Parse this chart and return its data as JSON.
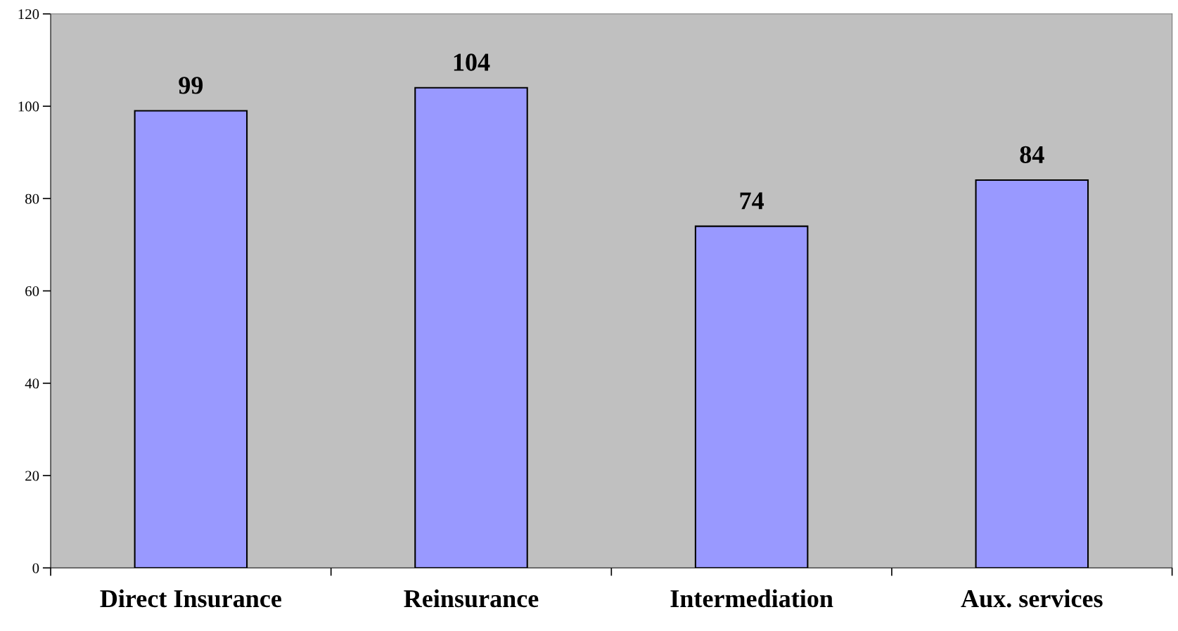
{
  "chart_data": {
    "type": "bar",
    "categories": [
      "Direct Insurance",
      "Reinsurance",
      "Intermediation",
      "Aux. services"
    ],
    "values": [
      99,
      104,
      74,
      84
    ],
    "color": "#9999ff",
    "ylim": [
      0,
      120
    ],
    "yticks": [
      0,
      20,
      40,
      60,
      80,
      100,
      120
    ],
    "data_labels": true,
    "grid": false,
    "legend": false
  }
}
